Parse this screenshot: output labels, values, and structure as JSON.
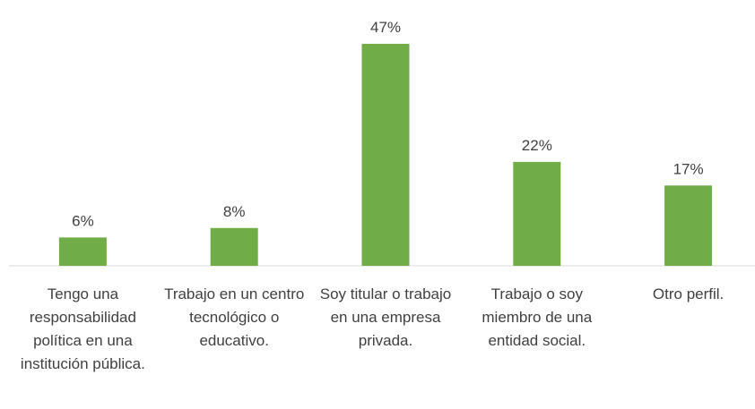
{
  "chart_data": {
    "type": "bar",
    "categories": [
      "Tengo una responsabilidad política en una institución pública.",
      "Trabajo en un centro tecnológico o educativo.",
      "Soy titular o trabajo en una empresa privada.",
      "Trabajo o soy miembro de una entidad social.",
      "Otro perfil."
    ],
    "values": [
      6,
      8,
      47,
      22,
      17
    ],
    "value_labels": [
      "6%",
      "8%",
      "47%",
      "22%",
      "17%"
    ],
    "color": "#70ad47"
  }
}
